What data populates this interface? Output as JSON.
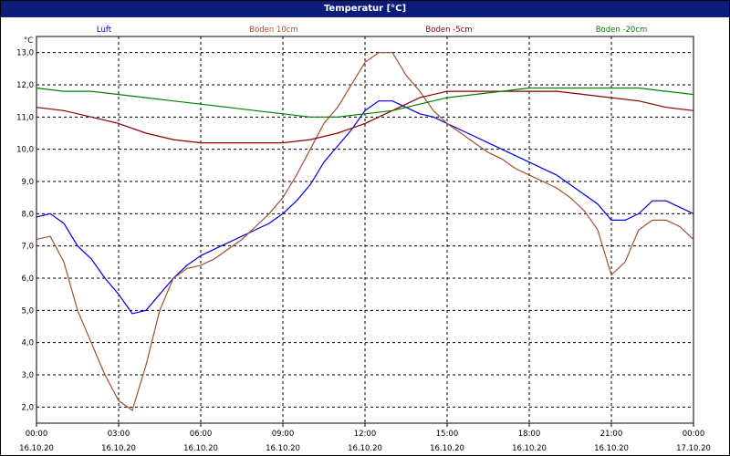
{
  "window": {
    "title": "Temperatur [°C]"
  },
  "colors": {
    "title_bg": "#0b1d7a",
    "luft": "#0000dd",
    "boden_10cm": "#a0522d",
    "boden_5cm": "#8b0000",
    "boden_20cm": "#008000"
  },
  "chart_data": {
    "type": "line",
    "title": "Temperatur [°C]",
    "ylabel": "°C",
    "xlabel": "",
    "ylim": [
      1.5,
      13.5
    ],
    "xlim": [
      0,
      24
    ],
    "grid": true,
    "legend_position": "top",
    "y_ticks": [
      "2,0",
      "3,0",
      "4,0",
      "5,0",
      "6,0",
      "7,0",
      "8,0",
      "9,0",
      "10,0",
      "11,0",
      "12,0",
      "13,0"
    ],
    "y_tick_values": [
      2,
      3,
      4,
      5,
      6,
      7,
      8,
      9,
      10,
      11,
      12,
      13
    ],
    "x_ticks": [
      {
        "time": "00:00",
        "date": "16.10.20"
      },
      {
        "time": "03:00",
        "date": "16.10.20"
      },
      {
        "time": "06:00",
        "date": "16.10.20"
      },
      {
        "time": "09:00",
        "date": "16.10.20"
      },
      {
        "time": "12:00",
        "date": "16.10.20"
      },
      {
        "time": "15:00",
        "date": "16.10.20"
      },
      {
        "time": "18:00",
        "date": "16.10.20"
      },
      {
        "time": "21:00",
        "date": "16.10.20"
      },
      {
        "time": "00:00",
        "date": "17.10.20"
      }
    ],
    "x_tick_values": [
      0,
      3,
      6,
      9,
      12,
      15,
      18,
      21,
      24
    ],
    "series": [
      {
        "name": "Luft",
        "color": "#0000dd",
        "x": [
          0,
          0.5,
          1,
          1.5,
          2,
          2.5,
          3,
          3.5,
          4,
          4.5,
          5,
          5.5,
          6,
          6.5,
          7,
          7.5,
          8,
          8.5,
          9,
          9.5,
          10,
          10.5,
          11,
          11.5,
          12,
          12.5,
          13,
          13.5,
          14,
          14.5,
          15,
          15.5,
          16,
          16.5,
          17,
          17.5,
          18,
          18.5,
          19,
          19.5,
          20,
          20.5,
          21,
          21.5,
          22,
          22.5,
          23,
          23.5,
          24
        ],
        "values": [
          7.9,
          8.0,
          7.7,
          7.0,
          6.6,
          6.0,
          5.5,
          4.9,
          5.0,
          5.5,
          6.0,
          6.4,
          6.7,
          6.9,
          7.1,
          7.3,
          7.5,
          7.7,
          8.0,
          8.4,
          8.9,
          9.6,
          10.1,
          10.6,
          11.2,
          11.5,
          11.5,
          11.3,
          11.1,
          11.0,
          10.8,
          10.6,
          10.4,
          10.2,
          10.0,
          9.8,
          9.6,
          9.4,
          9.2,
          8.9,
          8.6,
          8.3,
          7.8,
          7.8,
          8.0,
          8.4,
          8.4,
          8.2,
          8.0
        ]
      },
      {
        "name": "Boden 10cm",
        "color": "#a0522d",
        "x": [
          0,
          0.5,
          1,
          1.5,
          2,
          2.5,
          3,
          3.5,
          4,
          4.5,
          5,
          5.5,
          6,
          6.5,
          7,
          7.5,
          8,
          8.5,
          9,
          9.5,
          10,
          10.5,
          11,
          11.5,
          12,
          12.5,
          13,
          13.5,
          14,
          14.5,
          15,
          15.5,
          16,
          16.5,
          17,
          17.5,
          18,
          18.5,
          19,
          19.5,
          20,
          20.5,
          21,
          21.5,
          22,
          22.5,
          23,
          23.5,
          24
        ],
        "values": [
          7.2,
          7.3,
          6.5,
          5.0,
          4.0,
          3.0,
          2.2,
          1.9,
          3.3,
          5.0,
          6.0,
          6.3,
          6.4,
          6.6,
          6.9,
          7.2,
          7.6,
          8.0,
          8.5,
          9.2,
          10.0,
          10.8,
          11.3,
          12.0,
          12.7,
          13.0,
          13.0,
          12.3,
          11.8,
          11.2,
          10.8,
          10.5,
          10.2,
          9.9,
          9.7,
          9.4,
          9.2,
          9.0,
          8.8,
          8.5,
          8.1,
          7.5,
          6.1,
          6.5,
          7.5,
          7.8,
          7.8,
          7.6,
          7.2
        ]
      },
      {
        "name": "Boden -5cm",
        "color": "#8b0000",
        "x": [
          0,
          1,
          2,
          3,
          4,
          5,
          6,
          7,
          8,
          9,
          10,
          11,
          12,
          13,
          14,
          15,
          16,
          17,
          18,
          19,
          20,
          21,
          22,
          23,
          24
        ],
        "values": [
          11.3,
          11.2,
          11.0,
          10.8,
          10.5,
          10.3,
          10.2,
          10.2,
          10.2,
          10.2,
          10.3,
          10.5,
          10.8,
          11.2,
          11.6,
          11.8,
          11.8,
          11.8,
          11.8,
          11.8,
          11.7,
          11.6,
          11.5,
          11.3,
          11.2
        ]
      },
      {
        "name": "Boden -20cm",
        "color": "#008000",
        "x": [
          0,
          1,
          2,
          3,
          4,
          5,
          6,
          7,
          8,
          9,
          10,
          11,
          12,
          13,
          14,
          15,
          16,
          17,
          18,
          19,
          20,
          21,
          22,
          23,
          24
        ],
        "values": [
          11.9,
          11.8,
          11.8,
          11.7,
          11.6,
          11.5,
          11.4,
          11.3,
          11.2,
          11.1,
          11.0,
          11.0,
          11.1,
          11.2,
          11.4,
          11.6,
          11.7,
          11.8,
          11.9,
          11.9,
          11.9,
          11.9,
          11.9,
          11.8,
          11.7
        ]
      }
    ]
  }
}
